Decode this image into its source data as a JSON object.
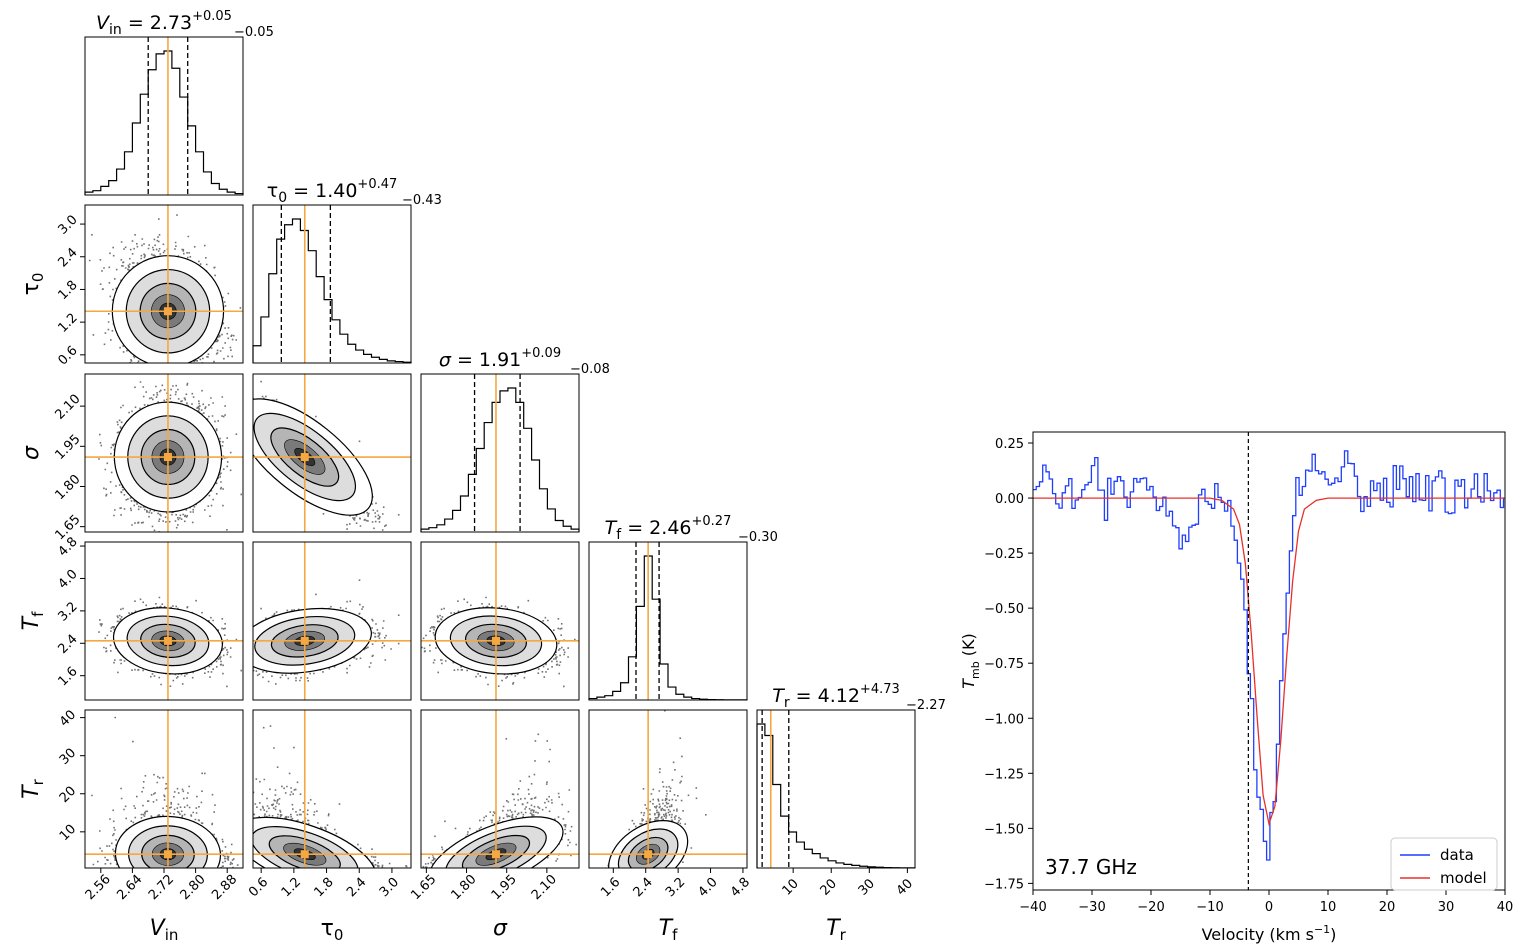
{
  "chart_data": [
    {
      "type": "corner",
      "params": [
        {
          "sym": "V",
          "sub": "in",
          "median": 2.73,
          "lo": 2.68,
          "hi": 2.78,
          "range": [
            2.52,
            2.92
          ],
          "ticks": [
            2.56,
            2.64,
            2.72,
            2.8,
            2.88
          ],
          "ticklabels": [
            "2.56",
            "2.64",
            "2.72",
            "2.80",
            "2.88"
          ],
          "val": "2.73",
          "plus": "+0.05",
          "minus": "−0.05",
          "italic": true
        },
        {
          "sym": "τ",
          "sub": "0",
          "median": 1.4,
          "lo": 0.97,
          "hi": 1.87,
          "range": [
            0.45,
            3.35
          ],
          "ticks": [
            0.6,
            1.2,
            1.8,
            2.4,
            3.0
          ],
          "ticklabels": [
            "0.6",
            "1.2",
            "1.8",
            "2.4",
            "3.0"
          ],
          "val": "1.40",
          "plus": "+0.47",
          "minus": "−0.43",
          "italic": false
        },
        {
          "sym": "σ",
          "sub": "",
          "median": 1.91,
          "lo": 1.83,
          "hi": 2.0,
          "range": [
            1.63,
            2.22
          ],
          "ticks": [
            1.65,
            1.8,
            1.95,
            2.1
          ],
          "ticklabels": [
            "1.65",
            "1.80",
            "1.95",
            "2.10"
          ],
          "val": "1.91",
          "plus": "+0.09",
          "minus": "−0.08",
          "italic": true
        },
        {
          "sym": "T",
          "sub": "f",
          "median": 2.46,
          "lo": 2.16,
          "hi": 2.73,
          "range": [
            1.0,
            4.9
          ],
          "ticks": [
            1.6,
            2.4,
            3.2,
            4.0,
            4.8
          ],
          "ticklabels": [
            "1.6",
            "2.4",
            "3.2",
            "4.0",
            "4.8"
          ],
          "val": "2.46",
          "plus": "+0.27",
          "minus": "−0.30",
          "italic": true
        },
        {
          "sym": "T",
          "sub": "r",
          "median": 4.12,
          "lo": 1.85,
          "hi": 8.85,
          "range": [
            0.5,
            42
          ],
          "ticks": [
            10,
            20,
            30,
            40
          ],
          "ticklabels": [
            "10",
            "20",
            "30",
            "40"
          ],
          "val": "4.12",
          "plus": "+4.73",
          "minus": "−2.27",
          "italic": true
        }
      ],
      "marginal_hist": [
        [
          0.02,
          0.03,
          0.06,
          0.1,
          0.18,
          0.3,
          0.5,
          0.7,
          0.87,
          0.98,
          1.0,
          0.88,
          0.68,
          0.48,
          0.3,
          0.16,
          0.08,
          0.04,
          0.02,
          0.01
        ],
        [
          0.12,
          0.32,
          0.62,
          0.86,
          0.96,
          1.0,
          0.92,
          0.78,
          0.6,
          0.44,
          0.3,
          0.2,
          0.13,
          0.09,
          0.06,
          0.04,
          0.025,
          0.015,
          0.01,
          0.005
        ],
        [
          0.02,
          0.03,
          0.05,
          0.09,
          0.15,
          0.25,
          0.4,
          0.58,
          0.76,
          0.9,
          0.98,
          1.0,
          0.9,
          0.72,
          0.5,
          0.3,
          0.16,
          0.08,
          0.04,
          0.02
        ],
        [
          0.01,
          0.02,
          0.03,
          0.06,
          0.12,
          0.3,
          0.65,
          1.0,
          0.7,
          0.25,
          0.09,
          0.04,
          0.02,
          0.01,
          0.005,
          0.003,
          0.002,
          0.001,
          0.001,
          0.001
        ],
        [
          1.0,
          0.92,
          0.58,
          0.36,
          0.25,
          0.18,
          0.13,
          0.1,
          0.07,
          0.05,
          0.035,
          0.025,
          0.018,
          0.012,
          0.008,
          0.005,
          0.003,
          0.002,
          0.001,
          0.001
        ]
      ],
      "correlations": {
        "1-0": -0.2,
        "2-0": 0.1,
        "2-1": -0.85,
        "3-0": -0.15,
        "3-1": 0.25,
        "3-2": -0.15,
        "4-0": -0.05,
        "4-1": -0.55,
        "4-2": 0.6,
        "4-3": 0.6
      }
    },
    {
      "type": "line",
      "xlabel": "Velocity (km s",
      "xlabel_sup": "−1",
      "xlabel_end": ")",
      "ylabel": "T",
      "ylabel_sub": "mb",
      "ylabel_end": " (K)",
      "xlim": [
        -40,
        40
      ],
      "ylim": [
        -1.78,
        0.3
      ],
      "xticks": [
        -40,
        -30,
        -20,
        -10,
        0,
        10,
        20,
        30,
        40
      ],
      "xticklabels": [
        "−40",
        "−30",
        "−20",
        "−10",
        "0",
        "10",
        "20",
        "30",
        "40"
      ],
      "yticks": [
        0.25,
        0.0,
        -0.25,
        -0.5,
        -0.75,
        -1.0,
        -1.25,
        -1.5,
        -1.75
      ],
      "yticklabels": [
        "0.25",
        "0.00",
        "−0.25",
        "−0.50",
        "−0.75",
        "−1.00",
        "−1.25",
        "−1.50",
        "−1.75"
      ],
      "vline_x": -3.5,
      "annotation": "37.7 GHz",
      "legend_position": "lower right",
      "series": [
        {
          "name": "data",
          "color": "#1f3fff",
          "step": true,
          "x": [
            -40,
            -38,
            -36,
            -34,
            -32,
            -30,
            -28,
            -26,
            -24,
            -22,
            -20,
            -18,
            -16,
            -14,
            -12,
            -10,
            -8,
            -6,
            -4.5,
            -3.5,
            -2.5,
            -1.5,
            -0.5,
            0.5,
            1.5,
            2.5,
            3.5,
            4.5,
            6,
            8,
            10,
            12,
            14,
            16,
            18,
            20,
            22,
            24,
            26,
            28,
            30,
            32,
            34,
            36,
            38,
            40
          ],
          "y": [
            0.05,
            0.12,
            -0.05,
            0.08,
            -0.02,
            0.15,
            0.0,
            0.1,
            -0.03,
            0.12,
            0.02,
            -0.02,
            -0.15,
            -0.28,
            -0.05,
            0.03,
            -0.02,
            -0.1,
            -0.4,
            -0.9,
            -1.3,
            -1.48,
            -1.55,
            -1.4,
            -1.0,
            -0.5,
            -0.2,
            0.02,
            0.1,
            0.08,
            0.05,
            0.12,
            0.2,
            -0.05,
            0.1,
            -0.03,
            0.15,
            0.05,
            -0.02,
            0.12,
            -0.08,
            0.1,
            0.0,
            0.08,
            0.02,
            -0.03
          ]
        },
        {
          "name": "model",
          "color": "#e8302a",
          "step": false,
          "x": [
            -40,
            -10,
            -8,
            -6,
            -5,
            -4,
            -3,
            -2,
            -1,
            0,
            1,
            2,
            3,
            4,
            5,
            6,
            8,
            10,
            40
          ],
          "y": [
            0.0,
            0.0,
            -0.01,
            -0.05,
            -0.12,
            -0.3,
            -0.62,
            -1.0,
            -1.35,
            -1.48,
            -1.4,
            -1.1,
            -0.72,
            -0.38,
            -0.15,
            -0.05,
            -0.01,
            0.0,
            0.0
          ]
        }
      ]
    }
  ]
}
